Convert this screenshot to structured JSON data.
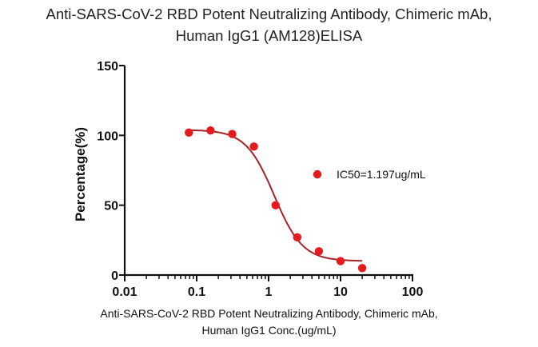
{
  "chart_data": {
    "type": "scatter",
    "title_lines": [
      "Anti-SARS-CoV-2 RBD Potent Neutralizing Antibody, Chimeric mAb,",
      "Human IgG1 (AM128)ELISA"
    ],
    "xlabel_lines": [
      "Anti-SARS-CoV-2 RBD Potent Neutralizing Antibody, Chimeric mAb,",
      "Human IgG1 Conc.(ug/mL)"
    ],
    "ylabel": "Percentage(%)",
    "xscale": "log",
    "xlim": [
      0.01,
      100
    ],
    "ylim": [
      0,
      150
    ],
    "xticks": [
      0.01,
      0.1,
      1,
      10,
      100
    ],
    "xtick_labels": [
      "0.01",
      "0.1",
      "1",
      "10",
      "100"
    ],
    "yticks": [
      0,
      50,
      100,
      150
    ],
    "ytick_labels": [
      "0",
      "50",
      "100",
      "150"
    ],
    "grid": false,
    "legend": {
      "position": "right",
      "entries": [
        "IC50=1.197ug/mL"
      ]
    },
    "series": [
      {
        "name": "IC50=1.197ug/mL",
        "color": "#e41a1c",
        "curve_color": "#a8222a",
        "x": [
          0.078,
          0.156,
          0.3125,
          0.625,
          1.25,
          2.5,
          5,
          10,
          20
        ],
        "y": [
          102,
          103.5,
          101,
          92,
          50,
          27,
          17,
          10,
          5
        ],
        "fit": {
          "model": "4PL",
          "top": 104,
          "bottom": 10,
          "ic50": 1.197,
          "hill": 2.2,
          "x_range": [
            0.078,
            20
          ]
        }
      }
    ]
  }
}
